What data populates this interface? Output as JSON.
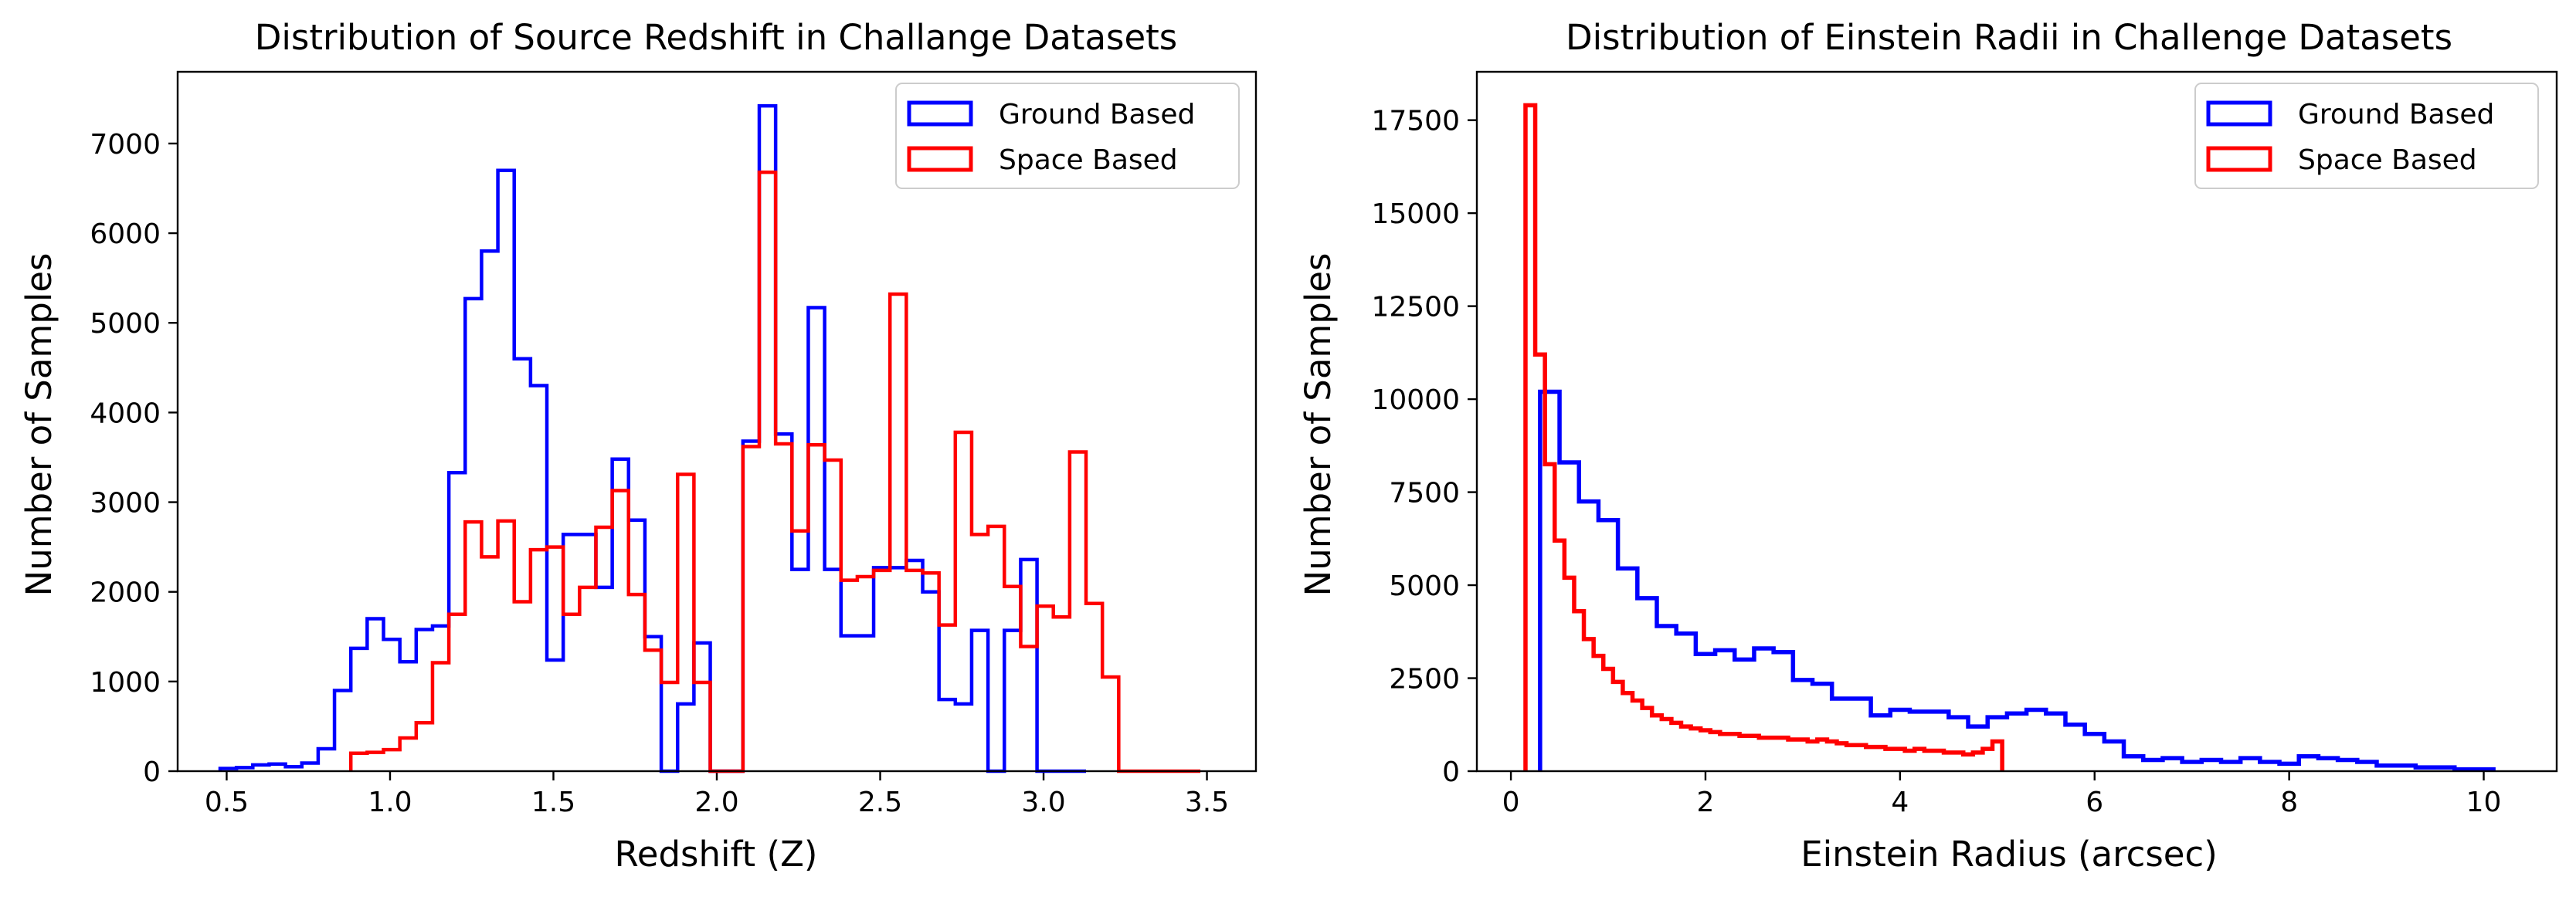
{
  "chart_data": [
    {
      "type": "histogram",
      "title": "Distribution of Source Redshift in Challange Datasets",
      "xlabel": "Redshift (Z)",
      "ylabel": "Number of Samples",
      "xlim": [
        0.35,
        3.65
      ],
      "ylim": [
        0,
        7800
      ],
      "xticks": [
        0.5,
        1.0,
        1.5,
        2.0,
        2.5,
        3.0,
        3.5
      ],
      "xtick_labels": [
        "0.5",
        "1.0",
        "1.5",
        "2.0",
        "2.5",
        "3.0",
        "3.5"
      ],
      "yticks": [
        0,
        1000,
        2000,
        3000,
        4000,
        5000,
        6000,
        7000
      ],
      "ytick_labels": [
        "0",
        "1000",
        "2000",
        "3000",
        "4000",
        "5000",
        "6000",
        "7000"
      ],
      "grid": false,
      "legend_position": "upper right",
      "series": [
        {
          "name": "Ground Based",
          "color": "#0000ff",
          "bins": [
            0.48,
            0.53,
            0.58,
            0.63,
            0.68,
            0.73,
            0.78,
            0.83,
            0.88,
            0.93,
            0.98,
            1.03,
            1.08,
            1.13,
            1.18,
            1.23,
            1.28,
            1.33,
            1.38,
            1.43,
            1.48,
            1.53,
            1.58,
            1.63,
            1.68,
            1.73,
            1.78,
            1.83,
            1.88,
            1.93,
            1.98,
            2.03,
            2.08,
            2.13,
            2.18,
            2.23,
            2.28,
            2.33,
            2.38,
            2.43,
            2.48,
            2.53,
            2.58,
            2.63,
            2.68,
            2.73,
            2.78,
            2.83,
            2.88,
            2.93,
            2.98,
            3.03,
            3.08,
            3.13
          ],
          "values": [
            30,
            40,
            70,
            80,
            50,
            90,
            250,
            900,
            1370,
            1700,
            1470,
            1220,
            1580,
            1620,
            3330,
            5270,
            5800,
            6700,
            4600,
            4300,
            1240,
            2640,
            2640,
            2050,
            3480,
            2800,
            1500,
            0,
            750,
            1430,
            0,
            0,
            3680,
            7420,
            3760,
            2250,
            5170,
            2250,
            1510,
            1510,
            2270,
            2270,
            2350,
            2000,
            800,
            750,
            1570,
            0,
            1570,
            2360,
            0,
            0,
            0
          ]
        },
        {
          "name": "Space Based",
          "color": "#ff0000",
          "bins": [
            0.88,
            0.93,
            0.98,
            1.03,
            1.08,
            1.13,
            1.18,
            1.23,
            1.28,
            1.33,
            1.38,
            1.43,
            1.48,
            1.53,
            1.58,
            1.63,
            1.68,
            1.73,
            1.78,
            1.83,
            1.88,
            1.93,
            1.98,
            2.03,
            2.08,
            2.13,
            2.18,
            2.23,
            2.28,
            2.33,
            2.38,
            2.43,
            2.48,
            2.53,
            2.58,
            2.63,
            2.68,
            2.73,
            2.78,
            2.83,
            2.88,
            2.93,
            2.98,
            3.03,
            3.08,
            3.13,
            3.18,
            3.23,
            3.28,
            3.33,
            3.38,
            3.43,
            3.48
          ],
          "values": [
            200,
            210,
            240,
            370,
            540,
            1210,
            1750,
            2780,
            2390,
            2790,
            1890,
            2470,
            2500,
            1750,
            2050,
            2720,
            3130,
            1970,
            1350,
            990,
            3310,
            990,
            0,
            0,
            3620,
            6680,
            3650,
            2680,
            3640,
            3470,
            2130,
            2170,
            2240,
            5320,
            2240,
            2210,
            1630,
            3780,
            2640,
            2730,
            2060,
            1390,
            1840,
            1720,
            3560,
            1870,
            1050,
            0,
            0,
            0,
            0,
            0
          ]
        }
      ]
    },
    {
      "type": "histogram",
      "title": "Distribution of Einstein Radii in Challenge Datasets",
      "xlabel": "Einstein Radius (arcsec)",
      "ylabel": "Number of Samples",
      "xlim": [
        -0.35,
        10.75
      ],
      "ylim": [
        0,
        18800
      ],
      "xticks": [
        0,
        2,
        4,
        6,
        8,
        10
      ],
      "xtick_labels": [
        "0",
        "2",
        "4",
        "6",
        "8",
        "10"
      ],
      "yticks": [
        0,
        2500,
        5000,
        7500,
        10000,
        12500,
        15000,
        17500
      ],
      "ytick_labels": [
        "0",
        "2500",
        "5000",
        "7500",
        "10000",
        "12500",
        "15000",
        "17500"
      ],
      "grid": false,
      "legend_position": "upper right",
      "series": [
        {
          "name": "Ground Based",
          "color": "#0000ff",
          "bins": [
            0.3,
            0.5,
            0.7,
            0.9,
            1.1,
            1.3,
            1.5,
            1.7,
            1.9,
            2.1,
            2.3,
            2.5,
            2.7,
            2.9,
            3.1,
            3.3,
            3.5,
            3.7,
            3.9,
            4.1,
            4.3,
            4.5,
            4.7,
            4.9,
            5.1,
            5.3,
            5.5,
            5.7,
            5.9,
            6.1,
            6.3,
            6.5,
            6.7,
            6.9,
            7.1,
            7.3,
            7.5,
            7.7,
            7.9,
            8.1,
            8.3,
            8.5,
            8.7,
            8.9,
            9.1,
            9.3,
            9.5,
            9.7,
            9.9,
            10.1
          ],
          "values": [
            10200,
            8300,
            7250,
            6750,
            5450,
            4650,
            3900,
            3700,
            3150,
            3250,
            3000,
            3300,
            3200,
            2450,
            2350,
            1950,
            1950,
            1500,
            1650,
            1600,
            1600,
            1450,
            1200,
            1450,
            1550,
            1650,
            1550,
            1250,
            1000,
            800,
            400,
            300,
            350,
            250,
            300,
            250,
            350,
            250,
            200,
            400,
            350,
            300,
            250,
            150,
            150,
            100,
            100,
            50,
            50
          ]
        },
        {
          "name": "Space Based",
          "color": "#ff0000",
          "bins": [
            0.15,
            0.25,
            0.35,
            0.45,
            0.55,
            0.65,
            0.75,
            0.85,
            0.95,
            1.05,
            1.15,
            1.25,
            1.35,
            1.45,
            1.55,
            1.65,
            1.75,
            1.85,
            1.95,
            2.05,
            2.15,
            2.25,
            2.35,
            2.45,
            2.55,
            2.65,
            2.75,
            2.85,
            2.95,
            3.05,
            3.15,
            3.25,
            3.35,
            3.45,
            3.55,
            3.65,
            3.75,
            3.85,
            3.95,
            4.05,
            4.15,
            4.25,
            4.35,
            4.45,
            4.55,
            4.65,
            4.75,
            4.85,
            4.95,
            5.05
          ],
          "values": [
            17900,
            11200,
            8250,
            6200,
            5200,
            4300,
            3550,
            3100,
            2750,
            2400,
            2100,
            1900,
            1700,
            1500,
            1400,
            1300,
            1200,
            1150,
            1100,
            1050,
            1000,
            1000,
            950,
            950,
            900,
            900,
            900,
            850,
            850,
            800,
            850,
            800,
            750,
            700,
            700,
            650,
            650,
            600,
            600,
            550,
            600,
            550,
            550,
            500,
            500,
            450,
            500,
            600,
            800
          ]
        }
      ]
    }
  ]
}
